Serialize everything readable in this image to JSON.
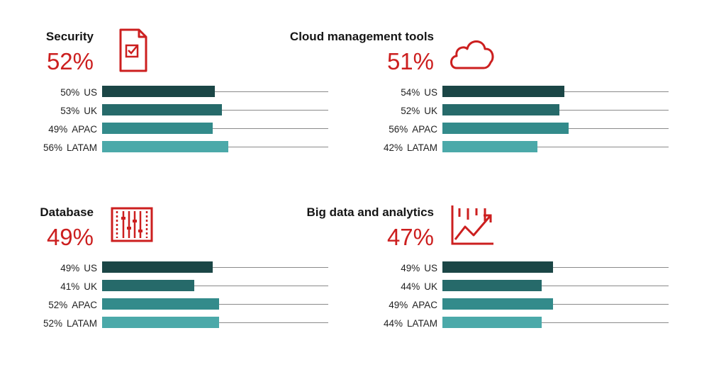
{
  "chart_data": [
    {
      "type": "bar",
      "title": "Security",
      "total": "52%",
      "icon": "document-checklist-icon",
      "categories": [
        "US",
        "UK",
        "APAC",
        "LATAM"
      ],
      "values": [
        50,
        53,
        49,
        56
      ],
      "value_labels": [
        "50%",
        "53%",
        "49%",
        "56%"
      ],
      "xlim": [
        0,
        100
      ],
      "colors": [
        "#1b4646",
        "#266a6a",
        "#338b8b",
        "#4ba9a9"
      ],
      "accent": "#cc1f1f"
    },
    {
      "type": "bar",
      "title": "Cloud management tools",
      "total": "51%",
      "icon": "cloud-icon",
      "categories": [
        "US",
        "UK",
        "APAC",
        "LATAM"
      ],
      "values": [
        54,
        52,
        56,
        42
      ],
      "value_labels": [
        "54%",
        "52%",
        "56%",
        "42%"
      ],
      "xlim": [
        0,
        100
      ],
      "colors": [
        "#1b4646",
        "#266a6a",
        "#338b8b",
        "#4ba9a9"
      ],
      "accent": "#cc1f1f"
    },
    {
      "type": "bar",
      "title": "Database",
      "total": "49%",
      "icon": "sliders-panel-icon",
      "categories": [
        "US",
        "UK",
        "APAC",
        "LATAM"
      ],
      "values": [
        49,
        41,
        52,
        52
      ],
      "value_labels": [
        "49%",
        "41%",
        "52%",
        "52%"
      ],
      "xlim": [
        0,
        100
      ],
      "colors": [
        "#1b4646",
        "#266a6a",
        "#338b8b",
        "#4ba9a9"
      ],
      "accent": "#cc1f1f"
    },
    {
      "type": "bar",
      "title": "Big data and analytics",
      "total": "47%",
      "icon": "analytics-chart-icon",
      "categories": [
        "US",
        "UK",
        "APAC",
        "LATAM"
      ],
      "values": [
        49,
        44,
        49,
        44
      ],
      "value_labels": [
        "49%",
        "44%",
        "49%",
        "44%"
      ],
      "xlim": [
        0,
        100
      ],
      "colors": [
        "#1b4646",
        "#266a6a",
        "#338b8b",
        "#4ba9a9"
      ],
      "accent": "#cc1f1f"
    }
  ]
}
